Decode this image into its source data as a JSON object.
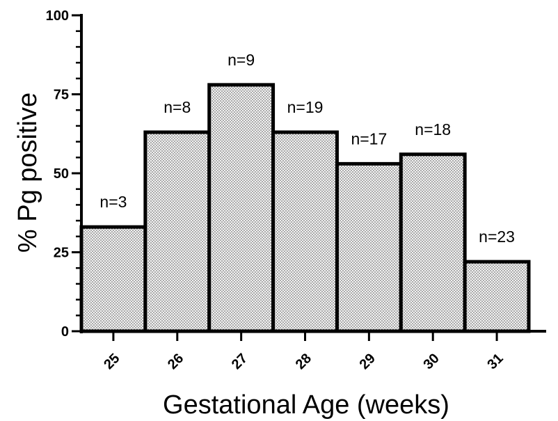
{
  "chart_data": {
    "type": "bar",
    "categories": [
      "25",
      "26",
      "27",
      "28",
      "29",
      "30",
      "31"
    ],
    "values": [
      33,
      63,
      78,
      63,
      53,
      56,
      22
    ],
    "n_labels": [
      "n=3",
      "n=8",
      "n=9",
      "n=19",
      "n=17",
      "n=18",
      "n=23"
    ],
    "xlabel": "Gestational Age (weeks)",
    "ylabel": "% Pg positive",
    "ylim": [
      0,
      100
    ],
    "yticks": [
      "0",
      "25",
      "50",
      "75",
      "100"
    ],
    "ytick_values": [
      0,
      25,
      50,
      75,
      100
    ],
    "grid": false,
    "bar_fill": "#e6e6e6",
    "bar_stroke": "#000000"
  }
}
